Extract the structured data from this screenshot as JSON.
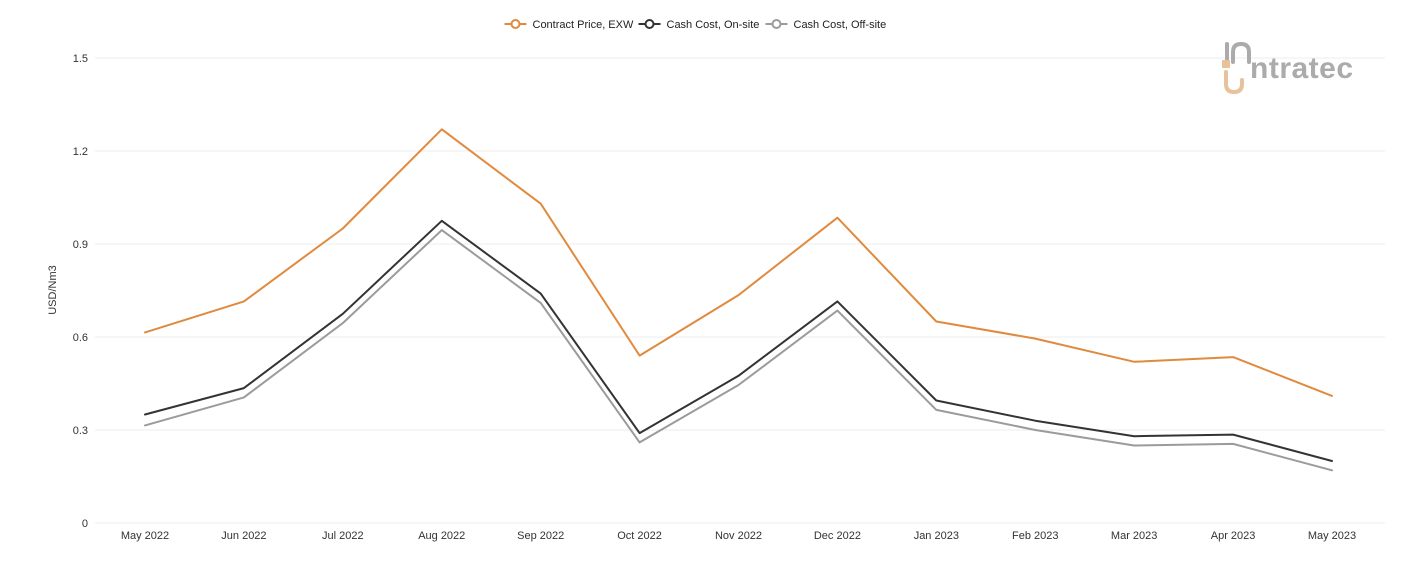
{
  "colors": {
    "contract": "#E08A3E",
    "onsite": "#333333",
    "offsite": "#9B9B9B",
    "grid": "#EEEEEE",
    "logo_main": "#ABABAB",
    "logo_accent": "#E7C29B"
  },
  "logo": {
    "prefix": "i",
    "text": "ntratec"
  },
  "chart_data": {
    "type": "line",
    "title": "",
    "xlabel": "",
    "ylabel": "USD/Nm3",
    "ylim": [
      0,
      1.5
    ],
    "yticks": [
      0,
      0.3,
      0.6,
      0.9,
      1.2,
      1.5
    ],
    "ytick_labels": [
      "0",
      "0.3",
      "0.6",
      "0.9",
      "1.2",
      "1.5"
    ],
    "grid": true,
    "legend_position": "top-center",
    "categories": [
      "May 2022",
      "Jun 2022",
      "Jul 2022",
      "Aug 2022",
      "Sep 2022",
      "Oct 2022",
      "Nov 2022",
      "Dec 2022",
      "Jan 2023",
      "Feb 2023",
      "Mar 2023",
      "Apr 2023",
      "May 2023"
    ],
    "series": [
      {
        "name": "Contract Price, EXW",
        "color": "#E08A3E",
        "values": [
          0.615,
          0.715,
          0.95,
          1.27,
          1.03,
          0.54,
          0.735,
          0.985,
          0.65,
          0.595,
          0.52,
          0.535,
          0.41
        ]
      },
      {
        "name": "Cash Cost, On-site",
        "color": "#333333",
        "values": [
          0.35,
          0.435,
          0.675,
          0.975,
          0.74,
          0.29,
          0.475,
          0.715,
          0.395,
          0.33,
          0.28,
          0.285,
          0.2
        ]
      },
      {
        "name": "Cash Cost, Off-site",
        "color": "#9B9B9B",
        "values": [
          0.315,
          0.405,
          0.645,
          0.945,
          0.71,
          0.26,
          0.445,
          0.685,
          0.365,
          0.3,
          0.25,
          0.255,
          0.17
        ]
      }
    ]
  }
}
